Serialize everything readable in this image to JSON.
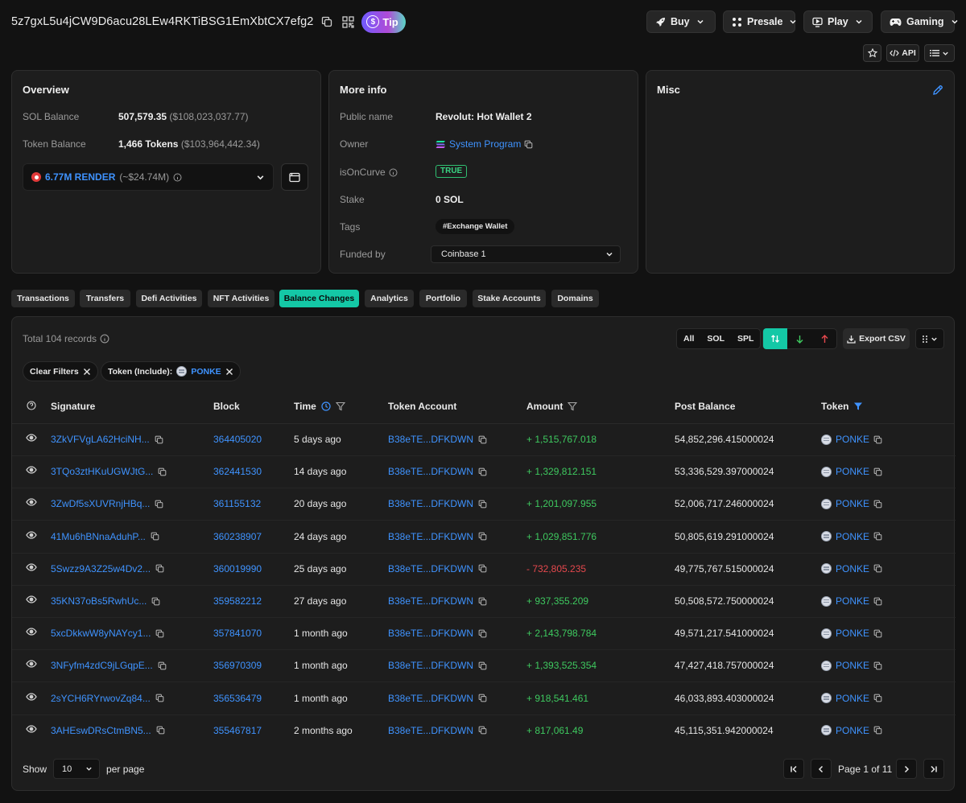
{
  "header": {
    "address": "5z7gxL5u4jCW9D6acu28LEw4RKTiBSG1EmXbtCX7efg2",
    "tip_label": "Tip",
    "nav": [
      {
        "label": "Buy",
        "icon": "rocket-icon"
      },
      {
        "label": "Presale",
        "icon": "presale-icon"
      },
      {
        "label": "Play",
        "icon": "play-icon"
      },
      {
        "label": "Gaming",
        "icon": "gamepad-icon"
      }
    ],
    "api_label": "API"
  },
  "overview": {
    "title": "Overview",
    "sol_balance_label": "SOL Balance",
    "sol_balance_value": "507,579.35",
    "sol_balance_usd": "($108,023,037.77)",
    "token_balance_label": "Token Balance",
    "token_balance_value": "1,466 Tokens",
    "token_balance_usd": "($103,964,442.34)",
    "selected_token": "6.77M RENDER",
    "selected_token_usd": "(~$24.74M)"
  },
  "more_info": {
    "title": "More info",
    "public_name_label": "Public name",
    "public_name_value": "Revolut: Hot Wallet 2",
    "owner_label": "Owner",
    "owner_value": "System Program",
    "is_on_curve_label": "isOnCurve",
    "is_on_curve_value": "TRUE",
    "stake_label": "Stake",
    "stake_value": "0 SOL",
    "tags_label": "Tags",
    "tag_value": "#Exchange Wallet",
    "funded_by_label": "Funded by",
    "funded_by_value": "Coinbase 1"
  },
  "misc": {
    "title": "Misc"
  },
  "tabs": [
    {
      "label": "Transactions",
      "active": false
    },
    {
      "label": "Transfers",
      "active": false
    },
    {
      "label": "Defi Activities",
      "active": false
    },
    {
      "label": "NFT Activities",
      "active": false
    },
    {
      "label": "Balance Changes",
      "active": true
    },
    {
      "label": "Analytics",
      "active": false
    },
    {
      "label": "Portfolio",
      "active": false
    },
    {
      "label": "Stake Accounts",
      "active": false
    },
    {
      "label": "Domains",
      "active": false
    }
  ],
  "table": {
    "total_records": "Total 104 records",
    "type_filters": [
      "All",
      "SOL",
      "SPL"
    ],
    "export_label": "Export CSV",
    "clear_filters_label": "Clear Filters",
    "token_filter_label": "Token (Include):",
    "token_filter_value": "PONKE",
    "columns": [
      "Signature",
      "Block",
      "Time",
      "Token Account",
      "Amount",
      "Post Balance",
      "Token"
    ],
    "rows": [
      {
        "signature": "3ZkVFVgLA62HciNH...",
        "block": "364405020",
        "time": "5 days ago",
        "token_account": "B38eTE...DFKDWN",
        "amount": "+ 1,515,767.018",
        "direction": "pos",
        "post_balance": "54,852,296.415000024",
        "token": "PONKE"
      },
      {
        "signature": "3TQo3ztHKuUGWJtG...",
        "block": "362441530",
        "time": "14 days ago",
        "token_account": "B38eTE...DFKDWN",
        "amount": "+ 1,329,812.151",
        "direction": "pos",
        "post_balance": "53,336,529.397000024",
        "token": "PONKE"
      },
      {
        "signature": "3ZwDf5sXUVRnjHBq...",
        "block": "361155132",
        "time": "20 days ago",
        "token_account": "B38eTE...DFKDWN",
        "amount": "+ 1,201,097.955",
        "direction": "pos",
        "post_balance": "52,006,717.246000024",
        "token": "PONKE"
      },
      {
        "signature": "41Mu6hBNnaAduhP...",
        "block": "360238907",
        "time": "24 days ago",
        "token_account": "B38eTE...DFKDWN",
        "amount": "+ 1,029,851.776",
        "direction": "pos",
        "post_balance": "50,805,619.291000024",
        "token": "PONKE"
      },
      {
        "signature": "5Swzz9A3Z25w4Dv2...",
        "block": "360019990",
        "time": "25 days ago",
        "token_account": "B38eTE...DFKDWN",
        "amount": "- 732,805.235",
        "direction": "neg",
        "post_balance": "49,775,767.515000024",
        "token": "PONKE"
      },
      {
        "signature": "35KN37oBs5RwhUc...",
        "block": "359582212",
        "time": "27 days ago",
        "token_account": "B38eTE...DFKDWN",
        "amount": "+ 937,355.209",
        "direction": "pos",
        "post_balance": "50,508,572.750000024",
        "token": "PONKE"
      },
      {
        "signature": "5xcDkkwW8yNAYcy1...",
        "block": "357841070",
        "time": "1 month ago",
        "token_account": "B38eTE...DFKDWN",
        "amount": "+ 2,143,798.784",
        "direction": "pos",
        "post_balance": "49,571,217.541000024",
        "token": "PONKE"
      },
      {
        "signature": "3NFyfm4zdC9jLGqpE...",
        "block": "356970309",
        "time": "1 month ago",
        "token_account": "B38eTE...DFKDWN",
        "amount": "+ 1,393,525.354",
        "direction": "pos",
        "post_balance": "47,427,418.757000024",
        "token": "PONKE"
      },
      {
        "signature": "2sYCH6RYrwovZq84...",
        "block": "356536479",
        "time": "1 month ago",
        "token_account": "B38eTE...DFKDWN",
        "amount": "+ 918,541.461",
        "direction": "pos",
        "post_balance": "46,033,893.403000024",
        "token": "PONKE"
      },
      {
        "signature": "3AHEswDRsCtmBN5...",
        "block": "355467817",
        "time": "2 months ago",
        "token_account": "B38eTE...DFKDWN",
        "amount": "+ 817,061.49",
        "direction": "pos",
        "post_balance": "45,115,351.942000024",
        "token": "PONKE"
      }
    ]
  },
  "pagination": {
    "show_label": "Show",
    "per_page_value": "10",
    "per_page_label": "per page",
    "page_label": "Page 1 of 11"
  },
  "colors": {
    "accent": "#14c8a6",
    "link": "#3f93ff",
    "positive": "#3ec95f",
    "negative": "#e5484d"
  }
}
